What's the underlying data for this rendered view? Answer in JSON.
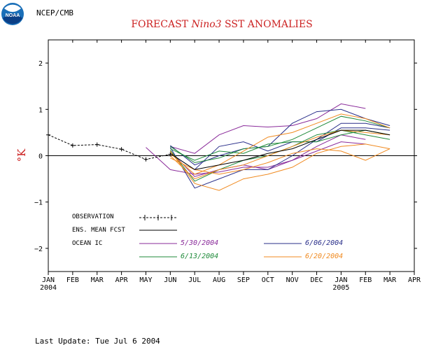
{
  "header": {
    "org": "NCEP/CMB",
    "logo_text": "NOAA",
    "title_prefix": "FORECAST",
    "title_em": "Nino3",
    "title_suffix": "SST ANOMALIES"
  },
  "footer": {
    "last_update": "Last Update: Tue Jul 6 2004"
  },
  "colors": {
    "title": "#cc2222",
    "observation": "#000000",
    "ens_mean": "#000000",
    "ic_1": "#8a2b9a",
    "ic_2": "#2a2f8a",
    "ic_3": "#1f8a3a",
    "ic_4": "#f08a20"
  },
  "legend": {
    "observation": "OBSERVATION",
    "ens_mean": "ENS. MEAN FCST",
    "ocean_ic": "OCEAN IC",
    "ic_dates": [
      "5/30/2004",
      "6/06/2004",
      "6/13/2004",
      "6/20/2004"
    ]
  },
  "chart_data": {
    "type": "line",
    "title": "FORECAST Nino3 SST ANOMALIES",
    "ylabel": "°K",
    "ylim": [
      -2.5,
      2.5
    ],
    "xlim": [
      0,
      15
    ],
    "yticks": [
      -2,
      -1,
      0,
      1,
      2
    ],
    "ytick_labels": [
      "−2",
      "−1",
      "0",
      "1",
      "2"
    ],
    "xticks": [
      0,
      1,
      2,
      3,
      4,
      5,
      6,
      7,
      8,
      9,
      10,
      11,
      12,
      13,
      14,
      15
    ],
    "xtick_labels": [
      "JAN",
      "FEB",
      "MAR",
      "APR",
      "MAY",
      "JUN",
      "JUL",
      "AUG",
      "SEP",
      "OCT",
      "NOV",
      "DEC",
      "JAN",
      "FEB",
      "MAR",
      "APR"
    ],
    "year_labels": [
      {
        "x": 0,
        "label": "2004"
      },
      {
        "x": 12,
        "label": "2005"
      }
    ],
    "zero_line": true,
    "observation": {
      "x": [
        0,
        1,
        2,
        3,
        4,
        5
      ],
      "y": [
        0.45,
        0.22,
        0.24,
        0.14,
        -0.08,
        0.03
      ]
    },
    "ens_mean": {
      "x": [
        5,
        6,
        7,
        8,
        9,
        10,
        11,
        12,
        13,
        14
      ],
      "y": [
        0.05,
        -0.3,
        -0.2,
        -0.1,
        0.05,
        0.15,
        0.35,
        0.55,
        0.55,
        0.45
      ]
    },
    "members": [
      {
        "group": 0,
        "x": [
          4,
          5,
          6,
          7,
          8,
          9,
          10,
          11,
          12,
          13
        ],
        "y": [
          0.18,
          -0.3,
          -0.4,
          -0.35,
          -0.25,
          -0.25,
          -0.1,
          0.1,
          0.3,
          0.25
        ]
      },
      {
        "group": 0,
        "x": [
          5,
          6,
          7,
          8,
          9,
          10,
          11,
          12,
          13
        ],
        "y": [
          0.2,
          0.05,
          0.45,
          0.65,
          0.62,
          0.65,
          0.8,
          1.12,
          1.02
        ]
      },
      {
        "group": 0,
        "x": [
          5,
          6,
          7,
          8,
          9,
          10,
          11,
          12,
          13
        ],
        "y": [
          0.1,
          -0.45,
          -0.3,
          -0.2,
          -0.3,
          -0.1,
          0.2,
          0.45,
          0.35
        ]
      },
      {
        "group": 1,
        "x": [
          5,
          6,
          7,
          8,
          9,
          10,
          11,
          12,
          13,
          14
        ],
        "y": [
          0.22,
          -0.2,
          0.0,
          0.15,
          0.2,
          0.7,
          0.95,
          1.0,
          0.8,
          0.65
        ]
      },
      {
        "group": 1,
        "x": [
          5,
          6,
          7,
          8,
          9,
          10,
          11,
          12,
          13,
          14
        ],
        "y": [
          0.18,
          -0.7,
          -0.5,
          -0.3,
          -0.3,
          0.0,
          0.35,
          0.7,
          0.7,
          0.6
        ]
      },
      {
        "group": 1,
        "x": [
          5,
          6,
          7,
          8,
          9,
          10,
          11,
          12,
          13,
          14
        ],
        "y": [
          0.05,
          -0.3,
          0.2,
          0.3,
          0.1,
          0.3,
          0.3,
          0.6,
          0.6,
          0.55
        ]
      },
      {
        "group": 2,
        "x": [
          5,
          6,
          7,
          8,
          9,
          10,
          11,
          12,
          13,
          14
        ],
        "y": [
          0.2,
          -0.15,
          -0.05,
          0.15,
          0.2,
          0.35,
          0.6,
          0.85,
          0.75,
          0.6
        ]
      },
      {
        "group": 2,
        "x": [
          5,
          6,
          7,
          8,
          9,
          10,
          11,
          12,
          13,
          14
        ],
        "y": [
          0.12,
          -0.55,
          -0.3,
          -0.1,
          0.0,
          0.2,
          0.45,
          0.55,
          0.45,
          0.35
        ]
      },
      {
        "group": 2,
        "x": [
          5,
          6,
          7,
          8,
          9,
          10,
          11,
          12,
          13,
          14
        ],
        "y": [
          0.15,
          -0.1,
          0.1,
          0.05,
          0.25,
          0.3,
          0.3,
          0.45,
          0.55,
          0.45
        ]
      },
      {
        "group": 3,
        "x": [
          5,
          6,
          7,
          8,
          9,
          10,
          11,
          12,
          13,
          14
        ],
        "y": [
          0.1,
          -0.6,
          -0.75,
          -0.5,
          -0.4,
          -0.25,
          0.05,
          0.2,
          0.25,
          0.15
        ]
      },
      {
        "group": 3,
        "x": [
          5,
          6,
          7,
          8,
          9,
          10,
          11,
          12,
          13,
          14
        ],
        "y": [
          0.05,
          -0.4,
          -0.2,
          0.1,
          0.4,
          0.5,
          0.7,
          0.9,
          0.8,
          0.6
        ]
      },
      {
        "group": 3,
        "x": [
          5,
          6,
          7,
          8,
          9,
          10,
          11,
          12,
          13,
          14
        ],
        "y": [
          0.0,
          -0.5,
          -0.3,
          -0.2,
          0.0,
          0.2,
          0.4,
          0.55,
          0.5,
          0.45
        ]
      },
      {
        "group": 3,
        "x": [
          5,
          6,
          7,
          8,
          9,
          10,
          11,
          12,
          13,
          14
        ],
        "y": [
          -0.05,
          -0.3,
          -0.4,
          -0.3,
          -0.15,
          0.05,
          0.15,
          0.1,
          -0.1,
          0.15
        ]
      }
    ]
  }
}
